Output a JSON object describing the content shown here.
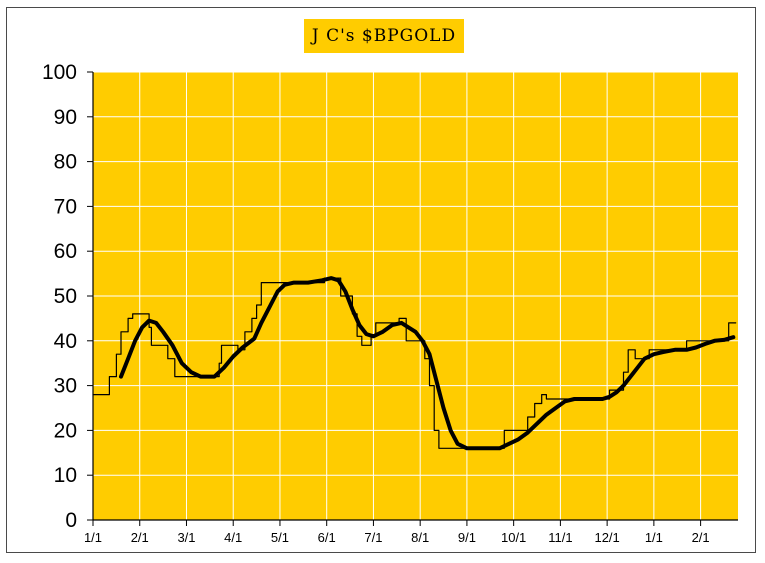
{
  "chart_data": {
    "type": "line",
    "title": "J C's $BPGOLD",
    "xlabel": "",
    "ylabel": "",
    "ylim": [
      0,
      100
    ],
    "yticks": [
      "0",
      "10",
      "20",
      "30",
      "40",
      "50",
      "60",
      "70",
      "80",
      "90",
      "100"
    ],
    "xticks": [
      "1/1",
      "2/1",
      "3/1",
      "4/1",
      "5/1",
      "6/1",
      "7/1",
      "8/1",
      "9/1",
      "10/1",
      "11/1",
      "12/1",
      "1/1",
      "2/1"
    ],
    "x_range_months": [
      0,
      13.8
    ],
    "grid": true,
    "background_color": "#ffcc00",
    "grid_color": "#ffffff",
    "series": [
      {
        "style": "thin-step",
        "color": "#000000",
        "points": [
          [
            0.0,
            28
          ],
          [
            0.35,
            28
          ],
          [
            0.35,
            32
          ],
          [
            0.5,
            32
          ],
          [
            0.5,
            37
          ],
          [
            0.6,
            37
          ],
          [
            0.6,
            42
          ],
          [
            0.75,
            42
          ],
          [
            0.75,
            45
          ],
          [
            0.85,
            45
          ],
          [
            0.85,
            46
          ],
          [
            1.2,
            46
          ],
          [
            1.2,
            43
          ],
          [
            1.25,
            43
          ],
          [
            1.25,
            39
          ],
          [
            1.6,
            39
          ],
          [
            1.6,
            36
          ],
          [
            1.75,
            36
          ],
          [
            1.75,
            32
          ],
          [
            2.7,
            32
          ],
          [
            2.7,
            35
          ],
          [
            2.75,
            35
          ],
          [
            2.75,
            39
          ],
          [
            3.1,
            39
          ],
          [
            3.1,
            38
          ],
          [
            3.25,
            38
          ],
          [
            3.25,
            42
          ],
          [
            3.4,
            42
          ],
          [
            3.4,
            45
          ],
          [
            3.5,
            45
          ],
          [
            3.5,
            48
          ],
          [
            3.6,
            48
          ],
          [
            3.6,
            53
          ],
          [
            4.95,
            53
          ],
          [
            4.95,
            54
          ],
          [
            5.3,
            54
          ],
          [
            5.3,
            50
          ],
          [
            5.55,
            50
          ],
          [
            5.55,
            46
          ],
          [
            5.65,
            46
          ],
          [
            5.65,
            41
          ],
          [
            5.75,
            41
          ],
          [
            5.75,
            39
          ],
          [
            5.95,
            39
          ],
          [
            5.95,
            41
          ],
          [
            6.05,
            41
          ],
          [
            6.05,
            44
          ],
          [
            6.55,
            44
          ],
          [
            6.55,
            45
          ],
          [
            6.7,
            45
          ],
          [
            6.7,
            40
          ],
          [
            7.1,
            40
          ],
          [
            7.1,
            36
          ],
          [
            7.2,
            36
          ],
          [
            7.2,
            30
          ],
          [
            7.3,
            30
          ],
          [
            7.3,
            20
          ],
          [
            7.4,
            20
          ],
          [
            7.4,
            16
          ],
          [
            8.8,
            16
          ],
          [
            8.8,
            20
          ],
          [
            9.3,
            20
          ],
          [
            9.3,
            23
          ],
          [
            9.45,
            23
          ],
          [
            9.45,
            26
          ],
          [
            9.6,
            26
          ],
          [
            9.6,
            28
          ],
          [
            9.7,
            28
          ],
          [
            9.7,
            27
          ],
          [
            11.05,
            27
          ],
          [
            11.05,
            29
          ],
          [
            11.35,
            29
          ],
          [
            11.35,
            33
          ],
          [
            11.45,
            33
          ],
          [
            11.45,
            38
          ],
          [
            11.6,
            38
          ],
          [
            11.6,
            36
          ],
          [
            11.9,
            36
          ],
          [
            11.9,
            38
          ],
          [
            12.7,
            38
          ],
          [
            12.7,
            40
          ],
          [
            13.6,
            40
          ],
          [
            13.6,
            44
          ],
          [
            13.75,
            44
          ]
        ]
      },
      {
        "style": "thick-smooth",
        "color": "#000000",
        "points": [
          [
            0.6,
            32
          ],
          [
            0.75,
            36
          ],
          [
            0.9,
            40
          ],
          [
            1.05,
            43
          ],
          [
            1.2,
            44.5
          ],
          [
            1.35,
            44
          ],
          [
            1.5,
            42
          ],
          [
            1.7,
            39
          ],
          [
            1.9,
            35
          ],
          [
            2.1,
            33
          ],
          [
            2.3,
            32
          ],
          [
            2.6,
            32
          ],
          [
            2.8,
            34
          ],
          [
            3.0,
            36.5
          ],
          [
            3.2,
            38.5
          ],
          [
            3.45,
            40.5
          ],
          [
            3.6,
            44
          ],
          [
            3.8,
            48
          ],
          [
            3.95,
            51
          ],
          [
            4.1,
            52.5
          ],
          [
            4.3,
            53
          ],
          [
            4.6,
            53
          ],
          [
            4.9,
            53.5
          ],
          [
            5.1,
            54
          ],
          [
            5.25,
            53.5
          ],
          [
            5.4,
            51
          ],
          [
            5.55,
            47
          ],
          [
            5.7,
            43.5
          ],
          [
            5.85,
            41.5
          ],
          [
            6.0,
            41
          ],
          [
            6.2,
            42
          ],
          [
            6.4,
            43.5
          ],
          [
            6.6,
            44
          ],
          [
            6.75,
            43
          ],
          [
            6.9,
            42
          ],
          [
            7.05,
            40
          ],
          [
            7.2,
            37
          ],
          [
            7.35,
            31
          ],
          [
            7.5,
            25
          ],
          [
            7.65,
            20
          ],
          [
            7.8,
            17
          ],
          [
            8.0,
            16
          ],
          [
            8.4,
            16
          ],
          [
            8.7,
            16
          ],
          [
            8.9,
            17
          ],
          [
            9.1,
            18
          ],
          [
            9.3,
            19.5
          ],
          [
            9.5,
            21.5
          ],
          [
            9.7,
            23.5
          ],
          [
            9.9,
            25
          ],
          [
            10.1,
            26.5
          ],
          [
            10.3,
            27
          ],
          [
            10.7,
            27
          ],
          [
            10.9,
            27
          ],
          [
            11.05,
            27.5
          ],
          [
            11.2,
            28.5
          ],
          [
            11.35,
            30
          ],
          [
            11.5,
            32
          ],
          [
            11.65,
            34
          ],
          [
            11.8,
            36
          ],
          [
            12.0,
            37
          ],
          [
            12.2,
            37.5
          ],
          [
            12.45,
            38
          ],
          [
            12.7,
            38
          ],
          [
            12.9,
            38.5
          ],
          [
            13.1,
            39.3
          ],
          [
            13.3,
            40
          ],
          [
            13.5,
            40.2
          ],
          [
            13.7,
            40.8
          ]
        ]
      }
    ]
  }
}
